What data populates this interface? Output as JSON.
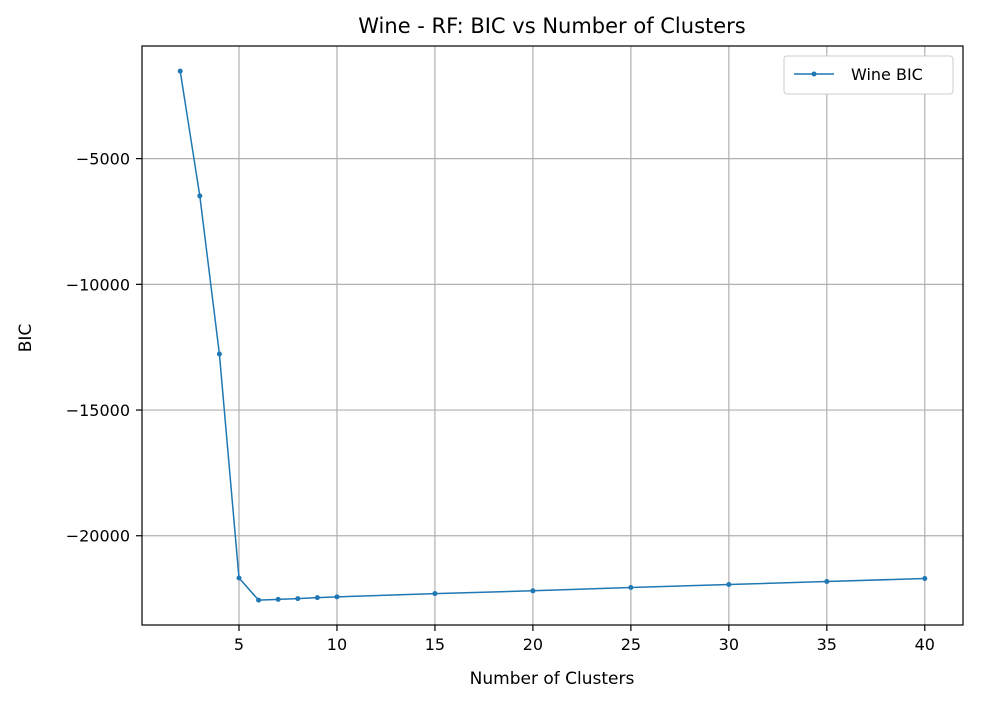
{
  "chart_data": {
    "type": "line",
    "title": "Wine - RF: BIC vs Number of Clusters",
    "xlabel": "Number of Clusters",
    "ylabel": "BIC",
    "xlim": [
      0.05,
      41.95
    ],
    "ylim": [
      -23550,
      -520
    ],
    "xticks": [
      5,
      10,
      15,
      20,
      25,
      30,
      35,
      40
    ],
    "xtick_labels": [
      "5",
      "10",
      "15",
      "20",
      "25",
      "30",
      "35",
      "40"
    ],
    "yticks": [
      -5000,
      -10000,
      -15000,
      -20000
    ],
    "ytick_labels": [
      "−5000",
      "−10000",
      "−15000",
      "−20000"
    ],
    "grid": true,
    "legend_position": "top-right",
    "series": [
      {
        "name": "Wine BIC",
        "color": "#1f77b4",
        "x": [
          2,
          3,
          4,
          5,
          6,
          7,
          8,
          9,
          10,
          15,
          20,
          25,
          30,
          35,
          40
        ],
        "y": [
          -1520,
          -6480,
          -12770,
          -21680,
          -22560,
          -22530,
          -22500,
          -22460,
          -22430,
          -22300,
          -22190,
          -22060,
          -21940,
          -21820,
          -21700
        ]
      }
    ]
  }
}
